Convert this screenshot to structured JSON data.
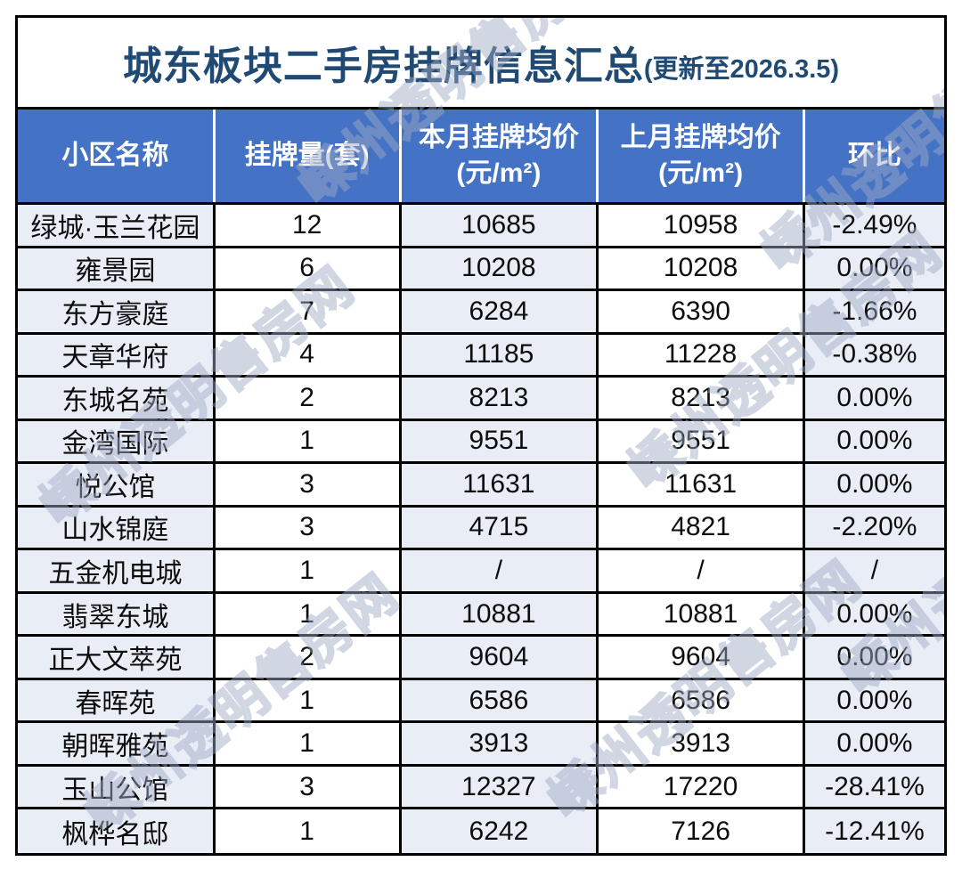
{
  "title": {
    "main": "城东板块二手房挂牌信息汇总",
    "update_note": "(更新至2026.3.5)"
  },
  "watermark": {
    "text": "嵊州透明售房网"
  },
  "colors": {
    "header_bg": "#4472C4",
    "header_text": "#FFFFFF",
    "banded_column_bg": "#E9EDF6",
    "title_text": "#204A73",
    "grid_border": "#000000"
  },
  "table": {
    "columns": [
      {
        "key": "community",
        "label": "小区名称",
        "sub": ""
      },
      {
        "key": "listings",
        "label": "挂牌量(套)",
        "sub": ""
      },
      {
        "key": "price_this_month",
        "label": "本月挂牌均价",
        "sub": "(元/m²)"
      },
      {
        "key": "price_last_month",
        "label": "上月挂牌均价",
        "sub": "(元/m²)"
      },
      {
        "key": "mom_change",
        "label": "环比",
        "sub": ""
      }
    ],
    "rows": [
      [
        "绿城·玉兰花园",
        "12",
        "10685",
        "10958",
        "-2.49%"
      ],
      [
        "雍景园",
        "6",
        "10208",
        "10208",
        "0.00%"
      ],
      [
        "东方豪庭",
        "7",
        "6284",
        "6390",
        "-1.66%"
      ],
      [
        "天章华府",
        "4",
        "11185",
        "11228",
        "-0.38%"
      ],
      [
        "东城名苑",
        "2",
        "8213",
        "8213",
        "0.00%"
      ],
      [
        "金湾国际",
        "1",
        "9551",
        "9551",
        "0.00%"
      ],
      [
        "悦公馆",
        "3",
        "11631",
        "11631",
        "0.00%"
      ],
      [
        "山水锦庭",
        "3",
        "4715",
        "4821",
        "-2.20%"
      ],
      [
        "五金机电城",
        "1",
        "/",
        "/",
        "/"
      ],
      [
        "翡翠东城",
        "1",
        "10881",
        "10881",
        "0.00%"
      ],
      [
        "正大文萃苑",
        "2",
        "9604",
        "9604",
        "0.00%"
      ],
      [
        "春晖苑",
        "1",
        "6586",
        "6586",
        "0.00%"
      ],
      [
        "朝晖雅苑",
        "1",
        "3913",
        "3913",
        "0.00%"
      ],
      [
        "玉山公馆",
        "3",
        "12327",
        "17220",
        "-28.41%"
      ],
      [
        "枫桦名邸",
        "1",
        "6242",
        "7126",
        "-12.41%"
      ]
    ]
  }
}
